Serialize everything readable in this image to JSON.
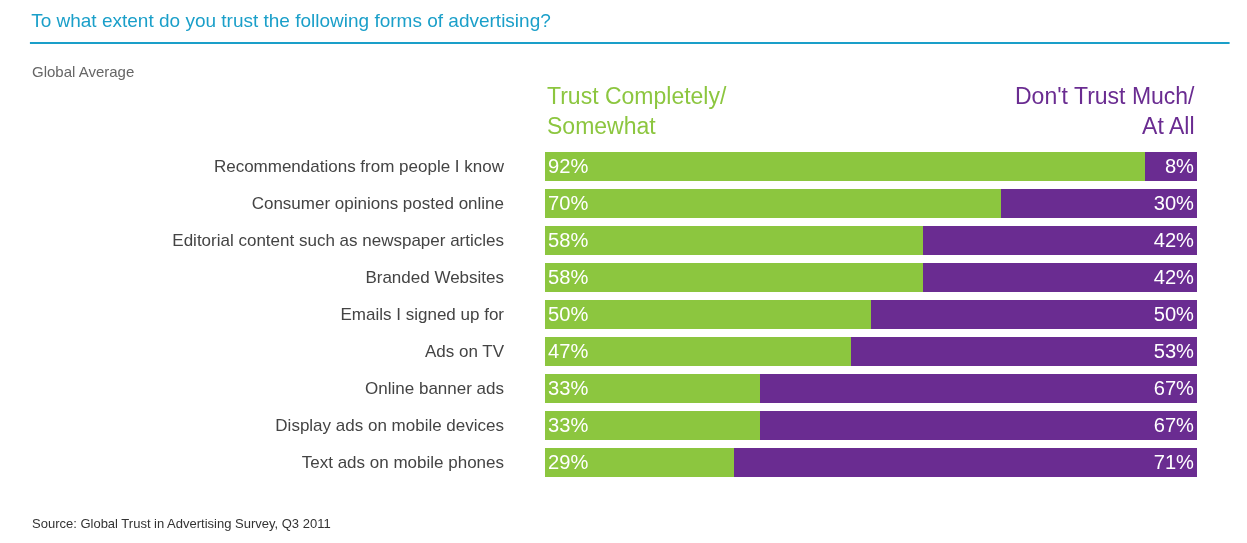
{
  "chart_data": {
    "type": "bar",
    "orientation": "horizontal",
    "stacked": true,
    "title": "To what extent do you trust the following forms of advertising?",
    "subtitle": "Global Average",
    "categories": [
      "Recommendations from people I know",
      "Consumer opinions posted online",
      "Editorial content such as newspaper articles",
      "Branded Websites",
      "Emails I signed up for",
      "Ads on TV",
      "Online banner ads",
      "Display ads on mobile devices",
      "Text ads on mobile phones"
    ],
    "series": [
      {
        "name": "Trust Completely/ Somewhat",
        "color": "#8cc63f",
        "values": [
          92,
          70,
          58,
          58,
          50,
          47,
          33,
          33,
          29
        ],
        "value_labels": [
          "92%",
          "70%",
          "58%",
          "58%",
          "50%",
          "47%",
          "33%",
          "33%",
          "29%"
        ]
      },
      {
        "name": "Don't Trust Much/ At All",
        "color": "#6a2c91",
        "values": [
          8,
          30,
          42,
          42,
          50,
          53,
          67,
          67,
          71
        ],
        "value_labels": [
          "8%",
          "30%",
          "42%",
          "42%",
          "50%",
          "53%",
          "67%",
          "67%",
          "71%"
        ]
      }
    ],
    "xlim": [
      0,
      100
    ],
    "tick_labels": "y",
    "legend": false,
    "annotations": [
      "Source: Global Trust in Advertising Survey, Q3 2011"
    ]
  }
}
